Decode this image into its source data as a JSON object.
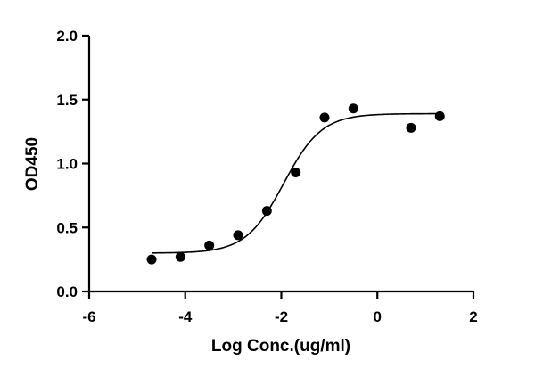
{
  "chart_data": {
    "type": "scatter",
    "title": "",
    "xlabel": "Log Conc.(ug/ml)",
    "ylabel": "OD450",
    "xlim": [
      -6,
      2
    ],
    "ylim": [
      0,
      2.0
    ],
    "x_ticks": [
      -6,
      -4,
      -2,
      0,
      2
    ],
    "x_tick_labels": [
      "-6",
      "-4",
      "-2",
      "0",
      "2"
    ],
    "y_ticks": [
      0,
      0.5,
      1.0,
      1.5,
      2.0
    ],
    "y_tick_labels": [
      "0.0",
      "0.5",
      "1.0",
      "1.5",
      "2.0"
    ],
    "grid": false,
    "legend": "none",
    "series": [
      {
        "points": [
          {
            "x": -4.7,
            "y": 0.25
          },
          {
            "x": -4.1,
            "y": 0.27
          },
          {
            "x": -3.5,
            "y": 0.36
          },
          {
            "x": -2.9,
            "y": 0.44
          },
          {
            "x": -2.3,
            "y": 0.63
          },
          {
            "x": -1.7,
            "y": 0.93
          },
          {
            "x": -1.1,
            "y": 1.36
          },
          {
            "x": -0.5,
            "y": 1.43
          },
          {
            "x": 0.7,
            "y": 1.28
          },
          {
            "x": 1.3,
            "y": 1.37
          }
        ],
        "marker": "filled-circle",
        "color": "#000000"
      }
    ],
    "fit_curve": {
      "type": "four-parameter-logistic",
      "x_range": [
        -4.7,
        1.3
      ],
      "bottom": 0.3,
      "top": 1.39,
      "log_ec50": -1.95,
      "hill_slope": 1.1,
      "color": "#000000"
    }
  }
}
